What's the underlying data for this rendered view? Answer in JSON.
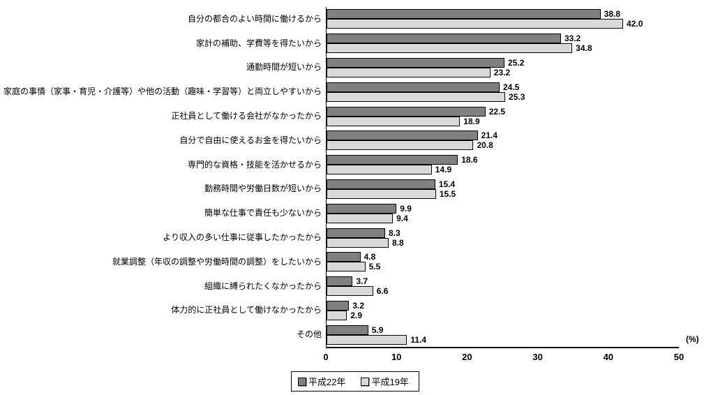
{
  "chart_data": {
    "type": "bar",
    "orientation": "horizontal",
    "title": "",
    "xlabel": "",
    "ylabel": "",
    "unit_label": "(%)",
    "xlim": [
      0,
      50
    ],
    "xticks": [
      0,
      10,
      20,
      30,
      40,
      50
    ],
    "grid": false,
    "legend_position": "bottom",
    "categories": [
      "自分の都合のよい時間に働けるから",
      "家計の補助、学費等を得たいから",
      "通勤時間が短いから",
      "家庭の事情（家事・育児・介護等）や他の活動（趣味・学習等）と両立しやすいから",
      "正社員として働ける会社がなかったから",
      "自分で自由に使えるお金を得たいから",
      "専門的な資格・技能を活かせるから",
      "勤務時間や労働日数が短いから",
      "簡単な仕事で責任も少ないから",
      "より収入の多い仕事に従事したかったから",
      "就業調整（年収の調整や労働時間の調整）をしたいから",
      "組織に縛られたくなかったから",
      "体力的に正社員として働けなかったから",
      "その他"
    ],
    "series": [
      {
        "name": "平成22年",
        "color": "#808080",
        "values": [
          38.8,
          33.2,
          25.2,
          24.5,
          22.5,
          21.4,
          18.6,
          15.4,
          9.9,
          8.3,
          4.8,
          3.7,
          3.2,
          5.9
        ]
      },
      {
        "name": "平成19年",
        "color": "#d9d9d9",
        "values": [
          42.0,
          34.8,
          23.2,
          25.3,
          18.9,
          20.8,
          14.9,
          15.5,
          9.4,
          8.8,
          5.5,
          6.6,
          2.9,
          11.4
        ]
      }
    ]
  }
}
